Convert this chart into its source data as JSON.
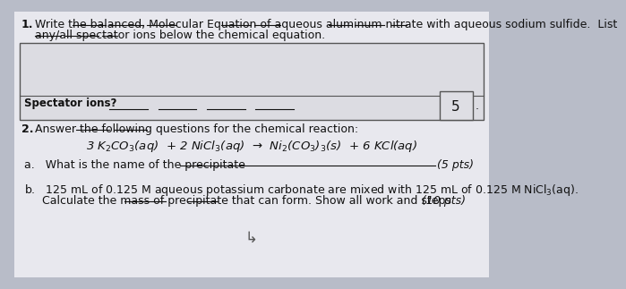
{
  "bg_color": "#b8bcc8",
  "paper_color": "#e8e8ee",
  "text_color": "#111111",
  "score_box_color": "#dedee4",
  "q1_number": "1.",
  "title_line1": "Write the balanced, Molecular Equation of aqueous aluminum nitrate with aqueous sodium sulfide.  List",
  "title_line2": "any/all spectator ions below the chemical equation.",
  "q2_number": "2.",
  "q2_intro": "Answer the following questions for the chemical reaction:",
  "reaction": "3 K$_2$CO$_3$(aq)  + 2 NiCl$_3$(aq)  →  Ni$_2$(CO$_3$)$_3$(s)  + 6 KCl(aq)",
  "qa_label": "a.   What is the name of the precipitate",
  "qa_pts": "(5 pts)",
  "qb_line1": "b.   125 mL of 0.125 M aqueous potassium carbonate are mixed with 125 mL of 0.125 M NiCl$_3$(aq).",
  "qb_line2": "     Calculate the mass of precipitate that can form. Show all work and steps",
  "qb_pts": "(10 pts)",
  "spectator_label": "Spectator ions?",
  "score_box_val": "5",
  "cursor_char": "↳"
}
